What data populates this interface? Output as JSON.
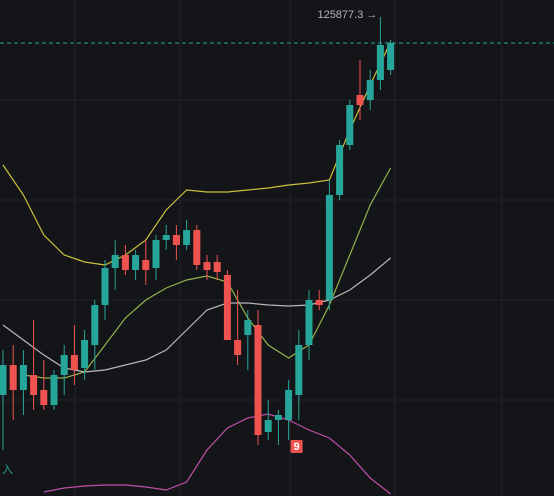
{
  "chart_data": {
    "type": "candlestick",
    "high_label": "125877.3 →",
    "signal_label": "9",
    "side_label": "入",
    "ylim": [
      106720,
      126560
    ],
    "up_color": "#26a69a",
    "down_color": "#ef5350",
    "open": [
      110760,
      111960,
      110960,
      111560,
      110960,
      110360,
      111560,
      112360,
      111840,
      112760,
      114360,
      115840,
      116360,
      115760,
      116160,
      115840,
      116960,
      117160,
      116760,
      117360,
      116080,
      116080,
      115560,
      112960,
      113160,
      113560,
      109280,
      109760,
      109760,
      110760,
      112760,
      114560,
      114560,
      118760,
      120760,
      122760,
      122560,
      123360,
      123760
    ],
    "high": [
      112560,
      112760,
      112560,
      113760,
      112160,
      111760,
      112760,
      113560,
      113360,
      114560,
      116160,
      116960,
      116760,
      116560,
      116960,
      117160,
      117560,
      117560,
      117760,
      117560,
      116360,
      116360,
      115760,
      114960,
      114160,
      114160,
      110560,
      110160,
      111360,
      113360,
      114960,
      114960,
      119360,
      120960,
      122560,
      124160,
      123760,
      125877.3,
      124960
    ],
    "low": [
      108560,
      109760,
      109960,
      110160,
      110160,
      110160,
      110760,
      111160,
      111360,
      111760,
      113760,
      114960,
      115560,
      115360,
      115160,
      115360,
      116560,
      116160,
      116560,
      115760,
      115360,
      115360,
      112960,
      111960,
      111760,
      108760,
      108960,
      108760,
      108960,
      109760,
      112160,
      114160,
      114160,
      118560,
      120560,
      121760,
      122160,
      122960,
      123560
    ],
    "close": [
      111960,
      110960,
      111960,
      110760,
      110360,
      111560,
      112360,
      111760,
      112960,
      114360,
      115840,
      116360,
      115760,
      116360,
      115760,
      116960,
      117160,
      116760,
      117360,
      115960,
      115760,
      115680,
      112960,
      112360,
      113760,
      109160,
      109760,
      109960,
      110960,
      112760,
      114560,
      114360,
      118760,
      120760,
      122360,
      122360,
      123360,
      124760,
      124840
    ],
    "signal_index": 28,
    "lines": [
      {
        "color": "#c8c23a",
        "x": [
          0,
          2,
          4,
          6,
          8,
          10,
          12,
          14,
          16,
          18,
          20,
          22,
          24,
          26,
          28,
          30,
          32,
          34,
          36,
          38
        ],
        "values": [
          119960,
          118760,
          117160,
          116360,
          116080,
          115960,
          116360,
          116960,
          118160,
          118960,
          118880,
          118880,
          118960,
          119040,
          119160,
          119240,
          119360,
          121360,
          123160,
          124880
        ]
      },
      {
        "color": "#8fb34a",
        "x": [
          2,
          4,
          6,
          8,
          10,
          12,
          14,
          16,
          18,
          20,
          22,
          24,
          26,
          28,
          30,
          32,
          34,
          36,
          38
        ],
        "values": [
          111560,
          111440,
          111440,
          111680,
          112760,
          113840,
          114560,
          115040,
          115360,
          115520,
          115280,
          113840,
          112760,
          112240,
          112760,
          114360,
          116360,
          118360,
          119840
        ]
      },
      {
        "color": "#b8b8b8",
        "x": [
          0,
          2,
          4,
          6,
          8,
          10,
          12,
          14,
          16,
          18,
          20,
          22,
          24,
          26,
          28,
          30,
          32,
          34,
          36,
          38
        ],
        "values": [
          113560,
          112960,
          112360,
          111840,
          111680,
          111760,
          111960,
          112160,
          112560,
          113360,
          114160,
          114440,
          114440,
          114360,
          114320,
          114360,
          114560,
          114960,
          115560,
          116240
        ]
      },
      {
        "color": "#c04fa8",
        "x": [
          4,
          6,
          8,
          10,
          12,
          14,
          16,
          18,
          20,
          22,
          24,
          26,
          28,
          30,
          32,
          34,
          36,
          38
        ],
        "values": [
          106880,
          107040,
          107120,
          107160,
          107160,
          107080,
          106960,
          107280,
          108560,
          109440,
          109840,
          110000,
          109760,
          109360,
          109040,
          108360,
          107440,
          106800
        ]
      }
    ]
  }
}
